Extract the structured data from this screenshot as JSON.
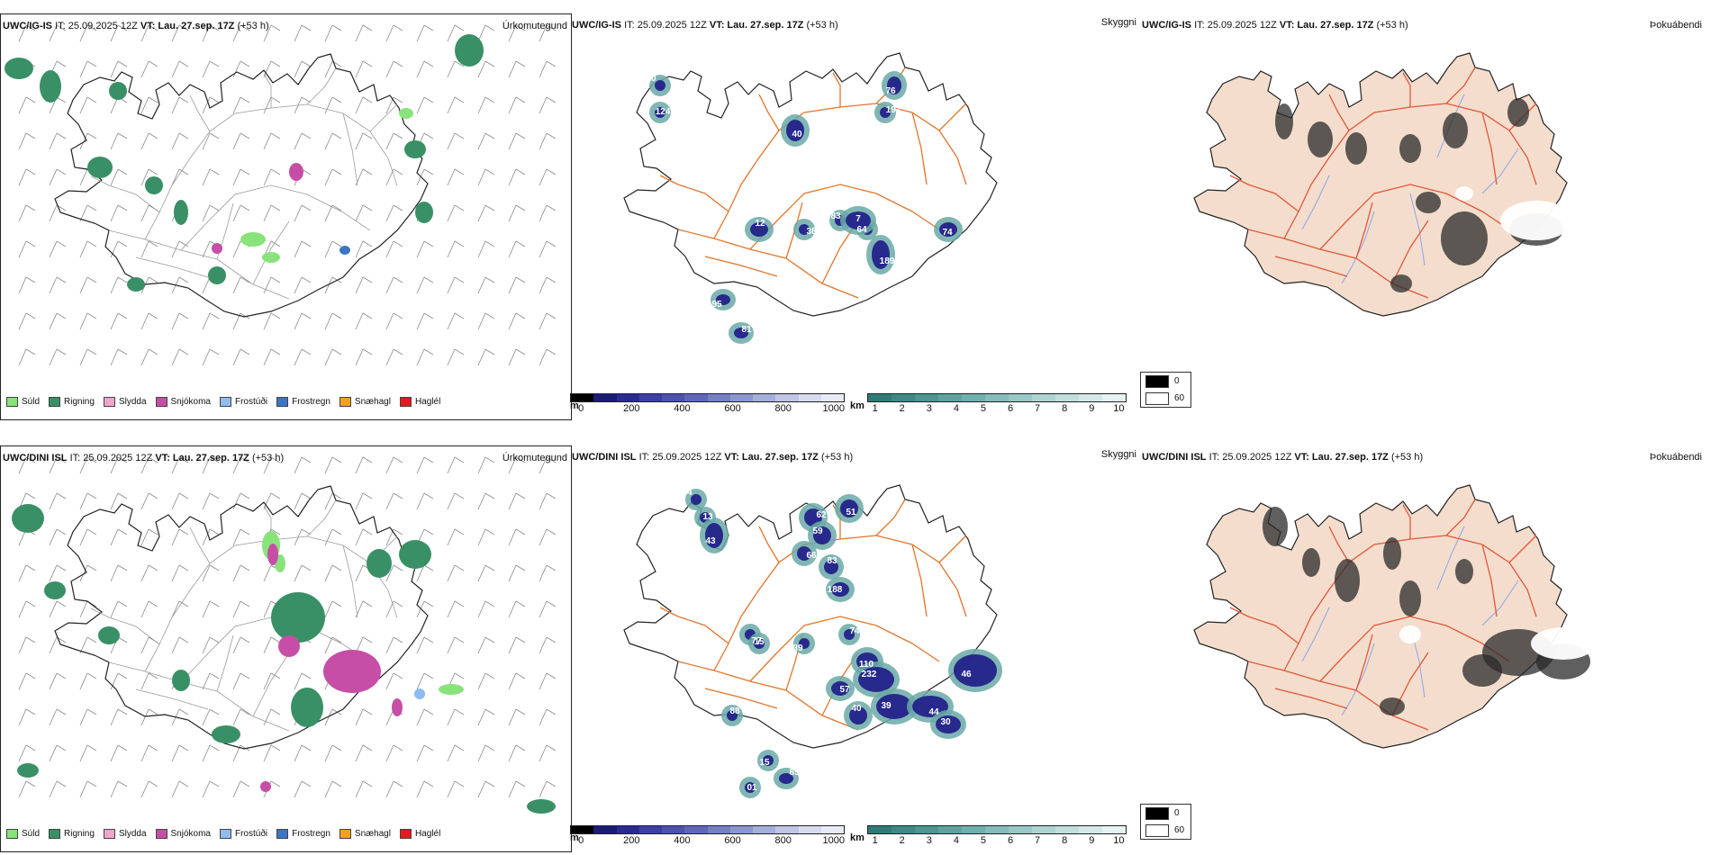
{
  "colors": {
    "rain": "#3a9066",
    "drizzle": "#88e37a",
    "sleet": "#f1a4cc",
    "snow": "#c64ea7",
    "freezing_drizzle": "#8ebcf0",
    "freezing_rain": "#3a76c4",
    "snow_pellets": "#f2a024",
    "hail": "#e01d1d",
    "land_cloud": "#f4ddcc",
    "roads": "#e3752a",
    "rivers": "#8aa6f0"
  },
  "header": {
    "top_left": {
      "model": "UWC/IG-IS",
      "it": "IT: 25.09.2025 12Z",
      "vt_label": "VT:",
      "vt_value": "Lau. 27.sep. 17Z",
      "lead": "(+53 h)"
    },
    "top_mid": {
      "model": "UWC/IG-IS",
      "it": "IT: 25.09.2025 12Z",
      "vt_label": "VT:",
      "vt_value": "Lau. 27.sep. 17Z",
      "lead": "(+53 h)"
    },
    "top_right": {
      "model": "UWC/IG-IS",
      "it": "IT: 25.09.2025 12Z",
      "vt_label": "VT:",
      "vt_value": "Lau. 27.sep. 17Z",
      "lead": "(+53 h)"
    },
    "bot_left": {
      "model": "UWC/DINI ISL",
      "it": "IT: 25.09.2025 12Z",
      "vt_label": "VT:",
      "vt_value": "Lau. 27.sep. 17Z",
      "lead": "(+53 h)"
    },
    "bot_mid": {
      "model": "UWC/DINI ISL",
      "it": "IT: 25.09.2025 12Z",
      "vt_label": "VT:",
      "vt_value": "Lau. 27.sep. 17Z",
      "lead": "(+53 h)"
    },
    "bot_right": {
      "model": "UWC/DINI ISL",
      "it": "IT: 25.09.2025 12Z",
      "vt_label": "VT:",
      "vt_value": "Lau. 27.sep. 17Z",
      "lead": "(+53 h)"
    }
  },
  "panel_titles": {
    "precip_type": "Úrkomutegund",
    "visibility": "Skyggni",
    "fog_index": "Þokuábendi"
  },
  "precip_legend": [
    {
      "label": "Súld",
      "color": "#88e37a"
    },
    {
      "label": "Rigning",
      "color": "#3a9066"
    },
    {
      "label": "Slydda",
      "color": "#f1a4cc"
    },
    {
      "label": "Snjókoma",
      "color": "#c64ea7"
    },
    {
      "label": "Frostúði",
      "color": "#8ebcf0"
    },
    {
      "label": "Frostregn",
      "color": "#3a76c4"
    },
    {
      "label": "Snæhagl",
      "color": "#f2a024"
    },
    {
      "label": "Haglél",
      "color": "#e01d1d"
    }
  ],
  "ceiling_bar": {
    "unit": "m",
    "ticks": [
      "0",
      "200",
      "400",
      "600",
      "800",
      "1000"
    ],
    "colors": [
      "#000000",
      "#1b1b7a",
      "#2a2a96",
      "#3b3da8",
      "#4d51b4",
      "#6067bd",
      "#7480c6",
      "#8b97d0",
      "#a5afdb",
      "#bfc6e6",
      "#d6dbef",
      "#e8ebf6"
    ]
  },
  "vis_bar": {
    "unit": "km",
    "ticks": [
      "1",
      "2",
      "3",
      "4",
      "5",
      "6",
      "7",
      "8",
      "9",
      "10"
    ],
    "colors": [
      "#2d7c7a",
      "#3c8a87",
      "#4b9794",
      "#5da4a1",
      "#70b0ad",
      "#84bcb9",
      "#98c8c5",
      "#acd4d1",
      "#c0dfdd",
      "#d4eae8",
      "#e6f3f2"
    ]
  },
  "cloud_legend": [
    {
      "label": "0",
      "color": "#000000"
    },
    {
      "label": "60",
      "color": "#ffffff"
    }
  ],
  "vis_labels_top": [
    "10",
    "124",
    "76",
    "197",
    "40",
    "83",
    "38",
    "12",
    "64",
    "189",
    "7",
    "95",
    "81",
    "74"
  ],
  "vis_labels_bot": [
    "74",
    "13",
    "43",
    "62",
    "51",
    "59",
    "66",
    "83",
    "188",
    "77",
    "15",
    "39",
    "74",
    "110",
    "232",
    "57",
    "40",
    "39",
    "44",
    "30",
    "46",
    "88",
    "15",
    "85",
    "01"
  ]
}
